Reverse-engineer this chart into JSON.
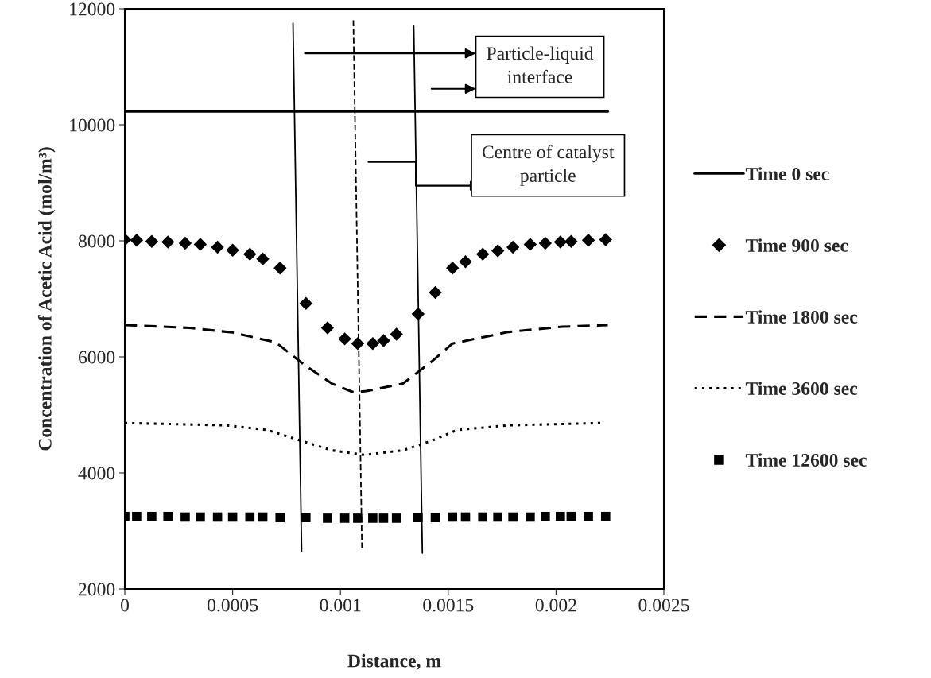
{
  "chart_data": {
    "type": "line",
    "xlabel": "Distance, m",
    "ylabel": "Concentration of Acetic Acid (mol/m³)",
    "xlim": [
      0,
      0.0025
    ],
    "xticks": [
      0,
      0.0005,
      0.001,
      0.0015,
      0.002,
      0.0025
    ],
    "ylim": [
      2000,
      12000
    ],
    "yticks": [
      2000,
      4000,
      6000,
      8000,
      10000,
      12000
    ],
    "grid": false,
    "legend": "right",
    "annotations": [
      "Particle-liquid interface",
      "Centre of catalyst particle"
    ],
    "series": [
      {
        "name": "Time 0 sec",
        "color": "#000000",
        "line_style": "solid",
        "marker": "none",
        "x": [
          0,
          0.00224
        ],
        "values": [
          10230,
          10230
        ]
      },
      {
        "name": "Time 900 sec",
        "type": "scatter",
        "color": "#000000",
        "marker": "diamond",
        "x": [
          0,
          5.5e-05,
          0.000125,
          0.0002,
          0.00028,
          0.00035,
          0.00043,
          0.0005,
          0.00058,
          0.00064,
          0.00072,
          0.00084,
          0.00094,
          0.00102,
          0.00108,
          0.00115,
          0.0012,
          0.00126,
          0.00136,
          0.00144,
          0.00152,
          0.00158,
          0.00166,
          0.00173,
          0.0018,
          0.00188,
          0.00195,
          0.00202,
          0.00207,
          0.00215,
          0.00223
        ],
        "values": [
          8020,
          8010,
          7990,
          7980,
          7960,
          7940,
          7890,
          7840,
          7770,
          7690,
          7530,
          6920,
          6500,
          6310,
          6230,
          6230,
          6280,
          6390,
          6740,
          7110,
          7530,
          7640,
          7770,
          7830,
          7890,
          7940,
          7960,
          7980,
          7990,
          8010,
          8020
        ]
      },
      {
        "name": "Time 1800 sec",
        "color": "#000000",
        "line_style": "dashed",
        "marker": "none",
        "x": [
          0,
          0.0003,
          0.0005,
          0.0007,
          0.00083,
          0.00096,
          0.00106,
          0.00112,
          0.00129,
          0.00142,
          0.00152,
          0.00178,
          0.00203,
          0.00224
        ],
        "values": [
          6550,
          6500,
          6420,
          6250,
          5870,
          5540,
          5390,
          5410,
          5540,
          5910,
          6230,
          6430,
          6520,
          6550
        ]
      },
      {
        "name": "Time 3600 sec",
        "color": "#000000",
        "line_style": "dotted",
        "marker": "none",
        "x": [
          0,
          0.00047,
          0.00066,
          0.00083,
          0.00096,
          0.00111,
          0.00129,
          0.00142,
          0.00154,
          0.00178,
          0.00222
        ],
        "values": [
          4860,
          4820,
          4740,
          4540,
          4390,
          4310,
          4390,
          4550,
          4740,
          4820,
          4860
        ]
      },
      {
        "name": "Time 12600 sec",
        "type": "scatter",
        "color": "#000000",
        "marker": "square",
        "x": [
          0,
          5.5e-05,
          0.000125,
          0.0002,
          0.00028,
          0.00035,
          0.00043,
          0.0005,
          0.00058,
          0.00064,
          0.00072,
          0.00084,
          0.00094,
          0.00102,
          0.00108,
          0.00115,
          0.0012,
          0.00126,
          0.00136,
          0.00144,
          0.00152,
          0.00158,
          0.00166,
          0.00173,
          0.0018,
          0.00188,
          0.00195,
          0.00202,
          0.00207,
          0.00215,
          0.00223
        ],
        "values": [
          3250,
          3250,
          3250,
          3250,
          3240,
          3240,
          3240,
          3240,
          3240,
          3240,
          3230,
          3230,
          3220,
          3220,
          3220,
          3220,
          3220,
          3220,
          3230,
          3230,
          3240,
          3240,
          3240,
          3240,
          3240,
          3240,
          3250,
          3250,
          3250,
          3250,
          3250
        ]
      },
      {
        "color": "#000000",
        "line_style": "solid",
        "marker": "none",
        "x": [
          0.00078,
          0.00082
        ],
        "values": [
          11750,
          2650
        ]
      },
      {
        "color": "#000000",
        "line_style": "solid",
        "marker": "none",
        "x": [
          0.00134,
          0.00138
        ],
        "values": [
          11700,
          2620
        ]
      },
      {
        "color": "#000000",
        "line_style": "dashed",
        "marker": "none",
        "x": [
          0.00106,
          0.0011
        ],
        "values": [
          11800,
          2700
        ]
      }
    ]
  }
}
